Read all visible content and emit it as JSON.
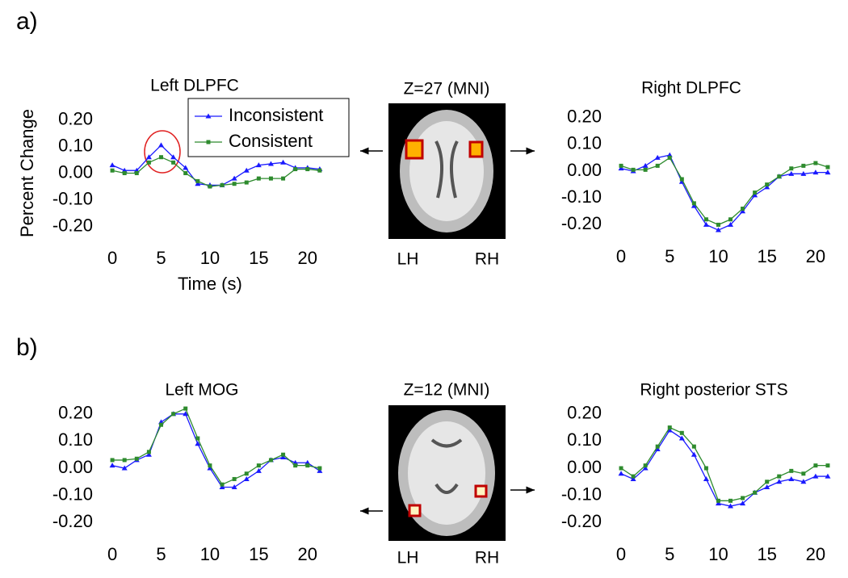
{
  "panels": [
    {
      "label": "a)",
      "slice": "Z=27 (MNI)",
      "left_hemisphere": "LH",
      "right_hemisphere": "RH"
    },
    {
      "label": "b)",
      "slice": "Z=12 (MNI)",
      "left_hemisphere": "LH",
      "right_hemisphere": "RH"
    }
  ],
  "chart_data": [
    {
      "type": "line",
      "title": "Left DLPFC",
      "y_label": "Percent Change",
      "x_label": "Time (s)",
      "legend": "upper right",
      "x": [
        0,
        1.25,
        2.5,
        3.75,
        5,
        6.25,
        7.5,
        8.75,
        10,
        11.25,
        12.5,
        13.75,
        15,
        16.25,
        17.5,
        18.75,
        20,
        21.25
      ],
      "series": [
        {
          "name": "Inconsistent",
          "color": "#1a1aff",
          "marker": "triangle",
          "values": [
            0.03,
            0.01,
            0.01,
            0.06,
            0.105,
            0.06,
            0.02,
            -0.04,
            -0.045,
            -0.045,
            -0.02,
            0.01,
            0.03,
            0.035,
            0.04,
            0.02,
            0.02,
            0.015
          ]
        },
        {
          "name": "Consistent",
          "color": "#2e8b2e",
          "marker": "square",
          "values": [
            0.01,
            0.0,
            0.0,
            0.04,
            0.06,
            0.04,
            0.0,
            -0.03,
            -0.05,
            -0.045,
            -0.04,
            -0.035,
            -0.02,
            -0.02,
            -0.02,
            0.015,
            0.015,
            0.01
          ]
        }
      ],
      "xlim": [
        -1,
        22.5
      ],
      "xticks": [
        0,
        5,
        10,
        15,
        20
      ],
      "ylim": [
        -0.25,
        0.25
      ],
      "yticks": [
        {
          "value": 0.2,
          "label": "0.20"
        },
        {
          "value": 0.1,
          "label": "0.10"
        },
        {
          "value": 0,
          "label": "0.00"
        },
        {
          "value": -0.1,
          "label": "-0.10"
        },
        {
          "value": -0.2,
          "label": "-0.20"
        }
      ]
    },
    {
      "type": "line",
      "title": "Right DLPFC",
      "x": [
        0,
        1.25,
        2.5,
        3.75,
        5,
        6.25,
        7.5,
        8.75,
        10,
        11.25,
        12.5,
        13.75,
        15,
        16.25,
        17.5,
        18.75,
        20,
        21.25
      ],
      "series": [
        {
          "color": "#1a1aff",
          "marker": "triangle",
          "values": [
            0.01,
            0.0,
            0.02,
            0.05,
            0.06,
            -0.04,
            -0.13,
            -0.2,
            -0.22,
            -0.2,
            -0.15,
            -0.09,
            -0.06,
            -0.02,
            -0.01,
            -0.01,
            -0.005,
            -0.005
          ]
        },
        {
          "color": "#2e8b2e",
          "marker": "square",
          "values": [
            0.02,
            0.005,
            0.005,
            0.02,
            0.05,
            -0.03,
            -0.12,
            -0.18,
            -0.2,
            -0.18,
            -0.14,
            -0.08,
            -0.05,
            -0.02,
            0.01,
            0.02,
            0.03,
            0.015
          ]
        }
      ],
      "xlim": [
        -1,
        22.5
      ],
      "xticks": [
        0,
        5,
        10,
        15,
        20
      ],
      "ylim": [
        -0.25,
        0.25
      ],
      "yticks": [
        {
          "value": 0.2,
          "label": "0.20"
        },
        {
          "value": 0.1,
          "label": "0.10"
        },
        {
          "value": 0,
          "label": "0.00"
        },
        {
          "value": -0.1,
          "label": "-0.10"
        },
        {
          "value": -0.2,
          "label": "-0.20"
        }
      ]
    },
    {
      "type": "line",
      "title": "Left MOG",
      "x": [
        0,
        1.25,
        2.5,
        3.75,
        5,
        6.25,
        7.5,
        8.75,
        10,
        11.25,
        12.5,
        13.75,
        15,
        16.25,
        17.5,
        18.75,
        20,
        21.25
      ],
      "series": [
        {
          "color": "#1a1aff",
          "marker": "triangle",
          "values": [
            0.01,
            0.0,
            0.03,
            0.05,
            0.17,
            0.2,
            0.2,
            0.09,
            0.0,
            -0.07,
            -0.07,
            -0.04,
            -0.01,
            0.03,
            0.04,
            0.02,
            0.02,
            -0.01
          ]
        },
        {
          "color": "#2e8b2e",
          "marker": "square",
          "values": [
            0.03,
            0.03,
            0.035,
            0.06,
            0.16,
            0.2,
            0.22,
            0.11,
            0.01,
            -0.06,
            -0.04,
            -0.02,
            0.01,
            0.03,
            0.05,
            0.01,
            0.01,
            0.0
          ]
        }
      ],
      "xlim": [
        -1,
        22.5
      ],
      "xticks": [
        0,
        5,
        10,
        15,
        20
      ],
      "ylim": [
        -0.25,
        0.25
      ],
      "yticks": [
        {
          "value": 0.2,
          "label": "0.20"
        },
        {
          "value": 0.1,
          "label": "0.10"
        },
        {
          "value": 0,
          "label": "0.00"
        },
        {
          "value": -0.1,
          "label": "-0.10"
        },
        {
          "value": -0.2,
          "label": "-0.20"
        }
      ]
    },
    {
      "type": "line",
      "title": "Right posterior STS",
      "x": [
        0,
        1.25,
        2.5,
        3.75,
        5,
        6.25,
        7.5,
        8.75,
        10,
        11.25,
        12.5,
        13.75,
        15,
        16.25,
        17.5,
        18.75,
        20,
        21.25
      ],
      "series": [
        {
          "color": "#1a1aff",
          "marker": "triangle",
          "values": [
            -0.02,
            -0.04,
            0.0,
            0.07,
            0.14,
            0.11,
            0.05,
            -0.04,
            -0.13,
            -0.14,
            -0.13,
            -0.09,
            -0.07,
            -0.05,
            -0.04,
            -0.05,
            -0.03,
            -0.03
          ]
        },
        {
          "color": "#2e8b2e",
          "marker": "square",
          "values": [
            0.0,
            -0.03,
            0.01,
            0.08,
            0.15,
            0.13,
            0.08,
            0.0,
            -0.12,
            -0.12,
            -0.11,
            -0.09,
            -0.05,
            -0.03,
            -0.01,
            -0.02,
            0.01,
            0.01
          ]
        }
      ],
      "xlim": [
        -1,
        22.5
      ],
      "xticks": [
        0,
        5,
        10,
        15,
        20
      ],
      "ylim": [
        -0.25,
        0.25
      ],
      "yticks": [
        {
          "value": 0.2,
          "label": "0.20"
        },
        {
          "value": 0.1,
          "label": "0.10"
        },
        {
          "value": 0,
          "label": "0.00"
        },
        {
          "value": -0.1,
          "label": "-0.10"
        },
        {
          "value": -0.2,
          "label": "-0.20"
        }
      ]
    }
  ]
}
